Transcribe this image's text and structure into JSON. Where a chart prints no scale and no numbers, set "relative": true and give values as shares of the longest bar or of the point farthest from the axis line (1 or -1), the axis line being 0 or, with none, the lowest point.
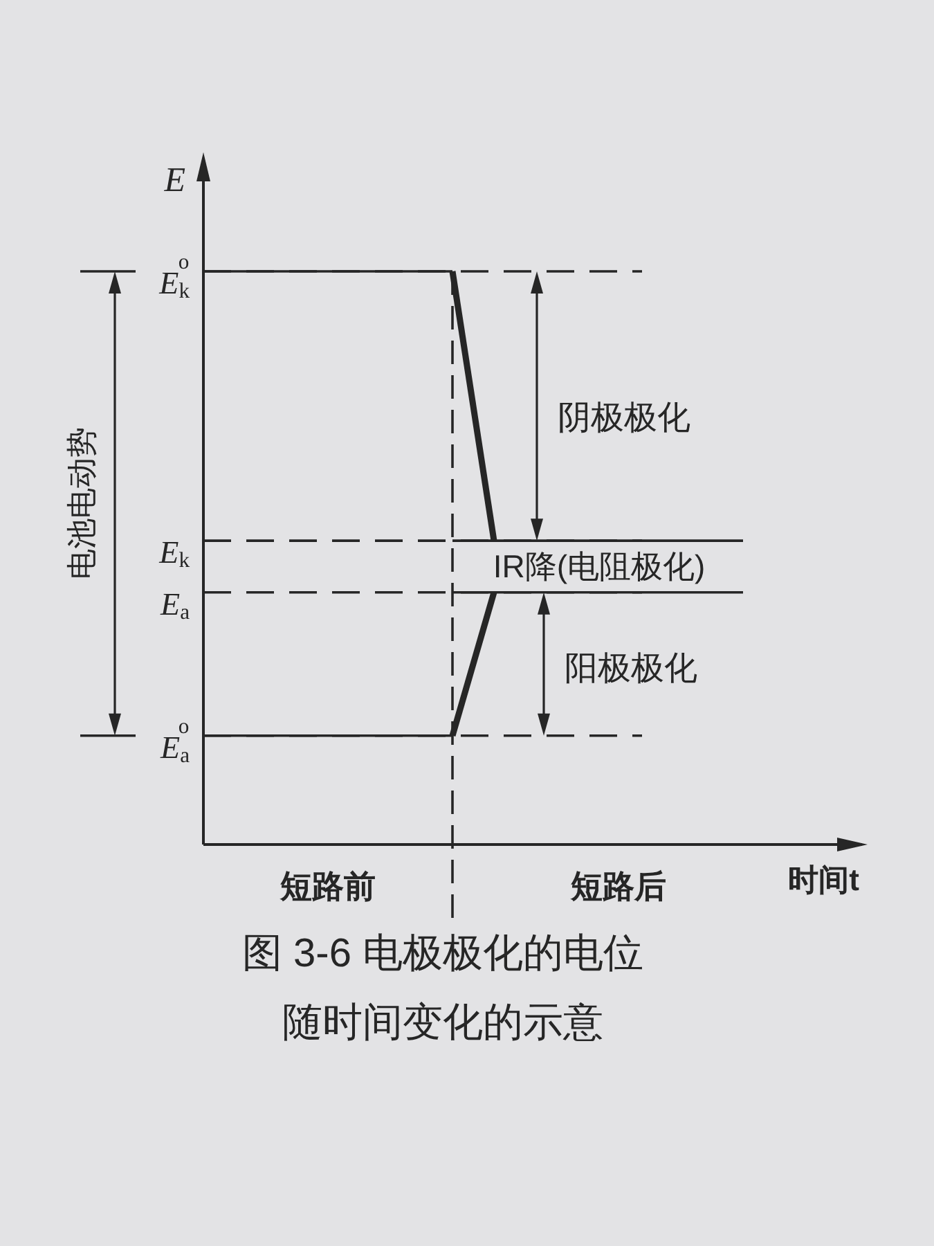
{
  "chart_data": {
    "type": "line",
    "relative": true,
    "title": "图 3-6 电极极化的电位随时间变化的示意",
    "xlabel": "时间t",
    "ylabel": "E",
    "categories": [
      null,
      null,
      null,
      "短路前",
      null,
      null,
      null,
      null,
      null,
      null,
      "短路后",
      null,
      null,
      null,
      null,
      null,
      null
    ],
    "series": [
      {
        "color": "#262626",
        "values": [
          1,
          1,
          1,
          1,
          1,
          1,
          1,
          null,
          null,
          null,
          null,
          null,
          null,
          null,
          null,
          null,
          null
        ]
      },
      {
        "color": "#262626",
        "values": [
          null,
          null,
          null,
          null,
          null,
          null,
          1,
          0.53,
          null,
          null,
          null,
          null,
          null,
          null,
          null,
          null,
          null
        ]
      },
      {
        "color": "#262626",
        "values": [
          null,
          null,
          null,
          null,
          null,
          null,
          0.53,
          0.53,
          0.53,
          0.53,
          0.53,
          0.53,
          0.53,
          0.53,
          null,
          null,
          null
        ]
      },
      {
        "color": "#262626",
        "values": [
          0.19,
          0.19,
          0.19,
          0.19,
          0.19,
          0.19,
          0.19,
          null,
          null,
          null,
          null,
          null,
          null,
          null,
          null,
          null,
          null
        ]
      },
      {
        "color": "#262626",
        "values": [
          null,
          null,
          null,
          null,
          null,
          null,
          0.19,
          0.44,
          null,
          null,
          null,
          null,
          null,
          null,
          null,
          null,
          null
        ]
      },
      {
        "color": "#262626",
        "values": [
          null,
          null,
          null,
          null,
          null,
          null,
          0.44,
          0.44,
          0.44,
          0.44,
          0.44,
          0.44,
          0.44,
          0.44,
          null,
          null,
          null
        ]
      }
    ],
    "ref_lines": [
      {
        "axis": "y",
        "value": 1,
        "label": "E$_{k}$$^{o}$",
        "line_style": "dashed",
        "color": "#262626"
      },
      {
        "axis": "y",
        "value": 0.53,
        "label": "E$_{k}$",
        "line_style": "dashed",
        "color": "#262626"
      },
      {
        "axis": "y",
        "value": 0.44,
        "label": "E$_{a}$",
        "line_style": "dashed",
        "color": "#262626"
      },
      {
        "axis": "y",
        "value": 0.19,
        "label": "E$_{a}$$^{o}$",
        "line_style": "dashed",
        "color": "#262626"
      },
      {
        "axis": "x",
        "line_style": "dashed",
        "color": "#262626"
      }
    ],
    "annotations": [
      "阴极极化",
      "IR降(电阻极化)",
      "阳极极化",
      "电池电动势"
    ]
  }
}
